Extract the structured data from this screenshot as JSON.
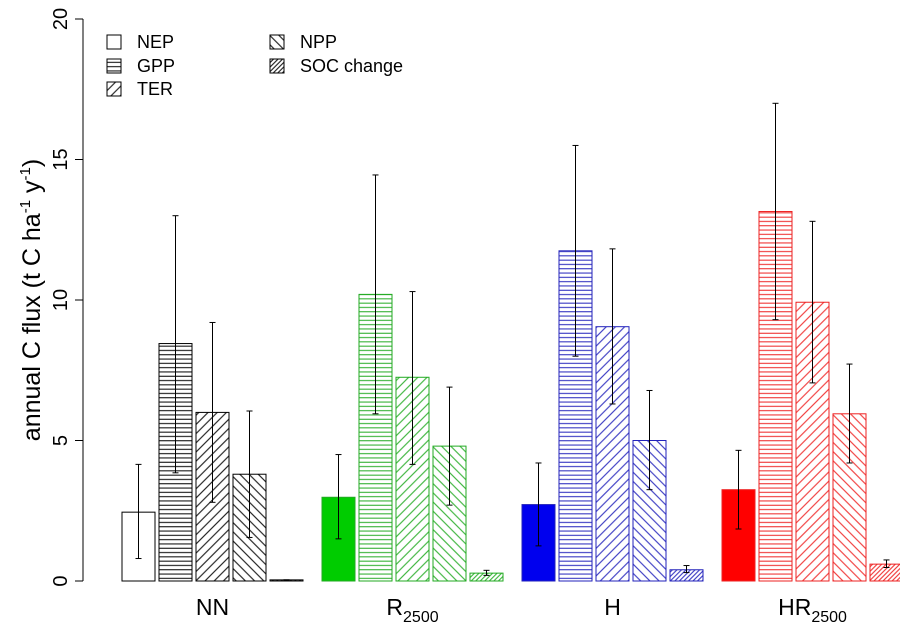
{
  "chart_data": {
    "type": "bar",
    "ylabel": "annual C flux (t C ha-1 y-1)",
    "ylabel_parts": [
      "annual C flux (t C ha",
      "-1",
      " y",
      "-1",
      ")"
    ],
    "ylim": [
      0,
      20
    ],
    "yticks": [
      0,
      5,
      10,
      15,
      20
    ],
    "ytick_labels": [
      "0",
      "5",
      "10",
      "15",
      "20"
    ],
    "grid": false,
    "legend_position": "top-left",
    "groups": [
      {
        "label": "NN",
        "label_base": "NN",
        "label_sub": "",
        "color": "#000000",
        "nep_fill": "#ffffff"
      },
      {
        "label": "R2500",
        "label_base": "R",
        "label_sub": "2500",
        "color": "#22aa22",
        "nep_fill": "#00cc00"
      },
      {
        "label": "H",
        "label_base": "H",
        "label_sub": "",
        "color": "#2222bb",
        "nep_fill": "#0000ee"
      },
      {
        "label": "HR2500",
        "label_base": "HR",
        "label_sub": "2500",
        "color": "#ee2222",
        "nep_fill": "#ff0000"
      }
    ],
    "series": [
      {
        "name": "NEP",
        "pattern": "empty",
        "values": [
          2.45,
          2.98,
          2.72,
          3.25
        ],
        "err_low": [
          0.8,
          1.5,
          1.25,
          1.85
        ],
        "err_high": [
          4.15,
          4.5,
          4.2,
          4.65
        ]
      },
      {
        "name": "GPP",
        "pattern": "horizontal",
        "values": [
          8.45,
          10.2,
          11.75,
          13.15
        ],
        "err_low": [
          3.85,
          5.95,
          8.0,
          9.3
        ],
        "err_high": [
          13.0,
          14.45,
          15.5,
          17.0
        ]
      },
      {
        "name": "TER",
        "pattern": "diagonal-up",
        "values": [
          6.0,
          7.25,
          9.05,
          9.92
        ],
        "err_low": [
          2.8,
          4.15,
          6.3,
          7.05
        ],
        "err_high": [
          9.2,
          10.3,
          11.82,
          12.8
        ]
      },
      {
        "name": "NPP",
        "pattern": "diagonal-down",
        "values": [
          3.8,
          4.8,
          5.0,
          5.95
        ],
        "err_low": [
          1.55,
          2.7,
          3.25,
          4.2
        ],
        "err_high": [
          6.05,
          6.9,
          6.78,
          7.72
        ]
      },
      {
        "name": "SOC change",
        "pattern": "dense-diagonal",
        "values": [
          0.04,
          0.28,
          0.4,
          0.6
        ],
        "err_low": [
          0.04,
          0.2,
          0.3,
          0.48
        ],
        "err_high": [
          0.04,
          0.38,
          0.55,
          0.75
        ]
      }
    ]
  }
}
